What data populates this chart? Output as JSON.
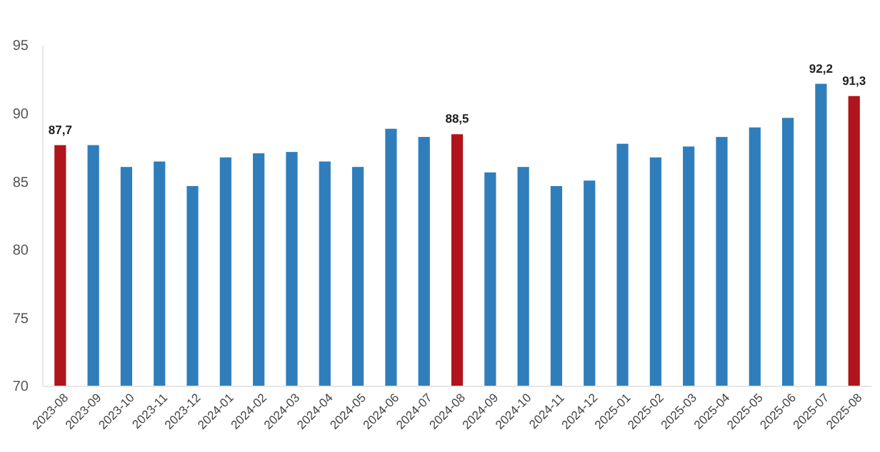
{
  "chart_data": {
    "type": "bar",
    "categories": [
      "2023-08",
      "2023-09",
      "2023-10",
      "2023-11",
      "2023-12",
      "2024-01",
      "2024-02",
      "2024-03",
      "2024-04",
      "2024-05",
      "2024-06",
      "2024-07",
      "2024-08",
      "2024-09",
      "2024-10",
      "2024-11",
      "2024-12",
      "2025-01",
      "2025-02",
      "2025-03",
      "2025-04",
      "2025-05",
      "2025-06",
      "2025-07",
      "2025-08"
    ],
    "values": [
      87.7,
      87.7,
      86.1,
      86.5,
      84.7,
      86.8,
      87.1,
      87.2,
      86.5,
      86.1,
      88.9,
      88.3,
      88.5,
      85.7,
      86.1,
      84.7,
      85.1,
      87.8,
      86.8,
      87.6,
      88.3,
      89.0,
      89.7,
      92.2,
      91.3
    ],
    "colors": [
      "#b0141c",
      "#2f7ebb",
      "#2f7ebb",
      "#2f7ebb",
      "#2f7ebb",
      "#2f7ebb",
      "#2f7ebb",
      "#2f7ebb",
      "#2f7ebb",
      "#2f7ebb",
      "#2f7ebb",
      "#2f7ebb",
      "#b0141c",
      "#2f7ebb",
      "#2f7ebb",
      "#2f7ebb",
      "#2f7ebb",
      "#2f7ebb",
      "#2f7ebb",
      "#2f7ebb",
      "#2f7ebb",
      "#2f7ebb",
      "#2f7ebb",
      "#2f7ebb",
      "#b0141c"
    ],
    "value_labels": [
      "87,7",
      null,
      null,
      null,
      null,
      null,
      null,
      null,
      null,
      null,
      null,
      null,
      "88,5",
      null,
      null,
      null,
      null,
      null,
      null,
      null,
      null,
      null,
      null,
      "92,2",
      "91,3"
    ],
    "ylim": [
      70,
      95
    ],
    "yticks": [
      70,
      75,
      80,
      85,
      90,
      95
    ],
    "grid": false
  }
}
